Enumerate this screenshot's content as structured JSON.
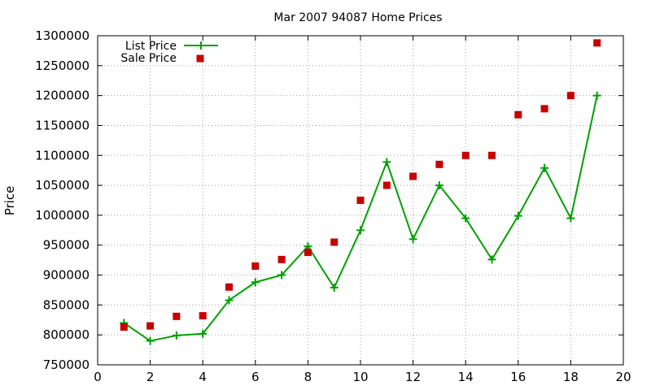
{
  "chart_data": {
    "type": "line",
    "title": "Mar 2007 94087 Home Prices",
    "xlabel": "",
    "ylabel": "Price",
    "xlim": [
      0,
      20
    ],
    "ylim": [
      750000,
      1300000
    ],
    "x_ticks": [
      0,
      2,
      4,
      6,
      8,
      10,
      12,
      14,
      16,
      18,
      20
    ],
    "y_ticks": [
      750000,
      800000,
      850000,
      900000,
      950000,
      1000000,
      1050000,
      1100000,
      1150000,
      1200000,
      1250000,
      1300000
    ],
    "grid": true,
    "legend_position": "top-left",
    "series": [
      {
        "name": "List Price",
        "style": "line+marker",
        "marker": "plus",
        "color": "#00a000",
        "x": [
          1,
          2,
          3,
          4,
          5,
          6,
          7,
          8,
          9,
          10,
          11,
          12,
          13,
          14,
          15,
          16,
          17,
          18,
          19
        ],
        "values": [
          820000,
          790000,
          799000,
          802000,
          858000,
          888000,
          900000,
          948000,
          879000,
          975000,
          1089000,
          960000,
          1050000,
          995000,
          926000,
          999000,
          1079000,
          995000,
          1200000
        ]
      },
      {
        "name": "Sale Price",
        "style": "marker",
        "marker": "square",
        "color": "#c80000",
        "x": [
          1,
          2,
          3,
          4,
          5,
          6,
          7,
          8,
          9,
          10,
          11,
          12,
          13,
          14,
          15,
          16,
          17,
          18,
          19
        ],
        "values": [
          813000,
          815000,
          831000,
          832000,
          880000,
          915000,
          926000,
          938000,
          955000,
          1025000,
          1050000,
          1065000,
          1085000,
          1100000,
          1100000,
          1168000,
          1178000,
          1200000,
          1288000
        ]
      }
    ]
  }
}
